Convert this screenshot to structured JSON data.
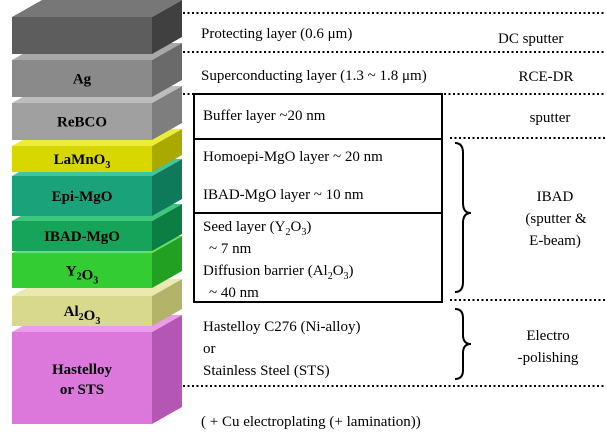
{
  "stack_layers": [
    {
      "label": "",
      "front": "#5d5d5d",
      "top": "#777777",
      "side": "#404040"
    },
    {
      "label": "Ag",
      "front": "#8a8a8a",
      "top": "#a8a8a8",
      "side": "#6a6a6a"
    },
    {
      "label": "ReBCO",
      "front": "#a0a0a0",
      "top": "#bdbdbd",
      "side": "#7e7e7e"
    },
    {
      "label": "LaMnO",
      "sub": "3",
      "front": "#d8d800",
      "top": "#eded39",
      "side": "#a9a900"
    },
    {
      "label": "Epi-MgO",
      "front": "#1aa37a",
      "top": "#3fc79b",
      "side": "#0f7a5a"
    },
    {
      "label": "IBAD-MgO",
      "front": "#16a35a",
      "top": "#3bc77c",
      "side": "#0c7d43"
    },
    {
      "label": "Y",
      "sub": "2",
      "label2": "O",
      "sub2": "3",
      "front": "#33cc33",
      "top": "#66e066",
      "side": "#22a022"
    },
    {
      "label": "Al",
      "sub": "2",
      "label2": "O",
      "sub2": "3",
      "front": "#d9d98e",
      "top": "#eaeab0",
      "side": "#b3b36a"
    },
    {
      "label": "Hastelloy",
      "label_line2": "or STS",
      "front": "#dc78dc",
      "top": "#eb9deb",
      "side": "#b457b4"
    }
  ],
  "descriptions": {
    "protecting": "Protecting  layer (0.6 μm)",
    "superconducting": "Superconducting  layer (1.3  ~ 1.8 μm)",
    "buffer": "Buffer layer ~20 nm",
    "homoepi": "Homoepi-MgO layer ~ 20 nm",
    "ibad": "IBAD-MgO layer ~ 10 nm",
    "seed_a": "Seed layer (Y",
    "seed_sub1": "2",
    "seed_b": "O",
    "seed_sub2": "3",
    "seed_c": ")",
    "seed_line2": "~ 7 nm",
    "diffusion_a": "Diffusion barrier (Al",
    "diffusion_sub1": "2",
    "diffusion_b": "O",
    "diffusion_sub2": "3",
    "diffusion_c": ")",
    "diffusion_line2": "~ 40 nm",
    "substrate_1": "Hastelloy C276  (Ni-alloy)",
    "substrate_2": "or",
    "substrate_3": "Stainless Steel (STS)",
    "footer": "( + Cu electroplating (+ lamination))"
  },
  "processes": {
    "dc_sputter": "DC sputter",
    "rce_dr": "RCE-DR",
    "sputter": "sputter",
    "ibad_1": "IBAD",
    "ibad_2": "(sputter &",
    "ibad_3": "E-beam)",
    "electro_1": "Electro",
    "electro_2": "-polishing"
  }
}
